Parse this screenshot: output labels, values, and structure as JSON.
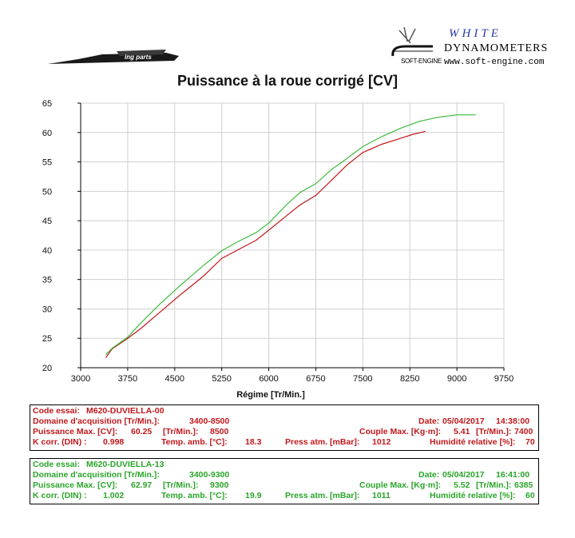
{
  "header": {
    "logo_left_text": "ing parts",
    "brand_top": "WHITE",
    "brand_name": "DYNAMOMETERS",
    "brand_engine": "SOFT-ENGINE",
    "brand_url": "www.soft-engine.com"
  },
  "chart_data": {
    "type": "line",
    "title": "Puissance à la roue corrigé [CV]",
    "xlabel": "Régime [Tr/Min.]",
    "ylabel": "",
    "xlim": [
      3000,
      9750
    ],
    "ylim": [
      20,
      65
    ],
    "x_ticks": [
      3000,
      3750,
      4500,
      5250,
      6000,
      6750,
      7500,
      8250,
      9000,
      9750
    ],
    "y_ticks": [
      20,
      25,
      30,
      35,
      40,
      45,
      50,
      55,
      60,
      65
    ],
    "grid": "major",
    "colors": {
      "series1": "#c0181c",
      "series2": "#3dbb3d",
      "grid": "#d0d0d0",
      "axis": "#000000"
    },
    "series": [
      {
        "name": "M620-DUVIELLA-00",
        "x": [
          3400,
          3500,
          3750,
          3950,
          4250,
          4600,
          4950,
          5250,
          5500,
          5800,
          6000,
          6300,
          6500,
          6750,
          7000,
          7250,
          7500,
          7800,
          8100,
          8300,
          8500
        ],
        "values": [
          21.7,
          23.2,
          25.0,
          26.6,
          29.3,
          32.5,
          35.5,
          38.6,
          40.0,
          41.7,
          43.4,
          46.0,
          47.7,
          49.3,
          51.9,
          54.5,
          56.6,
          58.0,
          59.0,
          59.7,
          60.2
        ]
      },
      {
        "name": "M620-DUVIELLA-13",
        "x": [
          3400,
          3500,
          3750,
          3950,
          4250,
          4600,
          4950,
          5250,
          5500,
          5800,
          6000,
          6300,
          6500,
          6750,
          7000,
          7250,
          7500,
          7800,
          8100,
          8400,
          8700,
          9000,
          9300
        ],
        "values": [
          22.2,
          23.3,
          25.2,
          27.5,
          30.7,
          34.1,
          37.3,
          39.9,
          41.4,
          43.0,
          44.6,
          47.9,
          49.8,
          51.3,
          53.7,
          55.6,
          57.6,
          59.3,
          60.7,
          61.9,
          62.6,
          63.0,
          63.0
        ]
      }
    ]
  },
  "panels": [
    {
      "code_label": "Code essai:",
      "code_value": "M620-DUVIELLA-00",
      "domaine_label": "Domaine d'acquisition [Tr/Min.]:",
      "domaine_value": "3400-8500",
      "date_label": "Date:",
      "date_value": "05/04/2017",
      "time_value": "14:38:00",
      "puissance_label": "Puissance Max. [CV]:",
      "puissance_value": "60.25",
      "puissance_rpm_label": "[Tr/Min.]:",
      "puissance_rpm_value": "8500",
      "couple_label": "Couple Max. [Kg·m]:",
      "couple_value": "5.41",
      "couple_rpm_label": "[Tr/Min.]:",
      "couple_rpm_value": "7400",
      "kcorr_label": "K corr. (DIN) :",
      "kcorr_value": "0.998",
      "temp_label": "Temp. amb. [°C]:",
      "temp_value": "18.3",
      "press_label": "Press atm. [mBar]:",
      "press_value": "1012",
      "hum_label": "Humidité relative [%]:",
      "hum_value": "70"
    },
    {
      "code_label": "Code essai:",
      "code_value": "M620-DUVIELLA-13",
      "domaine_label": "Domaine d'acquisition [Tr/Min.]:",
      "domaine_value": "3400-9300",
      "date_label": "Date:",
      "date_value": "05/04/2017",
      "time_value": "16:41:00",
      "puissance_label": "Puissance Max. [CV]:",
      "puissance_value": "62.97",
      "puissance_rpm_label": "[Tr/Min.]:",
      "puissance_rpm_value": "9300",
      "couple_label": "Couple Max. [Kg·m]:",
      "couple_value": "5.52",
      "couple_rpm_label": "[Tr/Min.]:",
      "couple_rpm_value": "6385",
      "kcorr_label": "K corr. (DIN) :",
      "kcorr_value": "1.002",
      "temp_label": "Temp. amb. [°C]:",
      "temp_value": "19.9",
      "press_label": "Press atm. [mBar]:",
      "press_value": "1011",
      "hum_label": "Humidité relative [%]:",
      "hum_value": "60"
    }
  ]
}
